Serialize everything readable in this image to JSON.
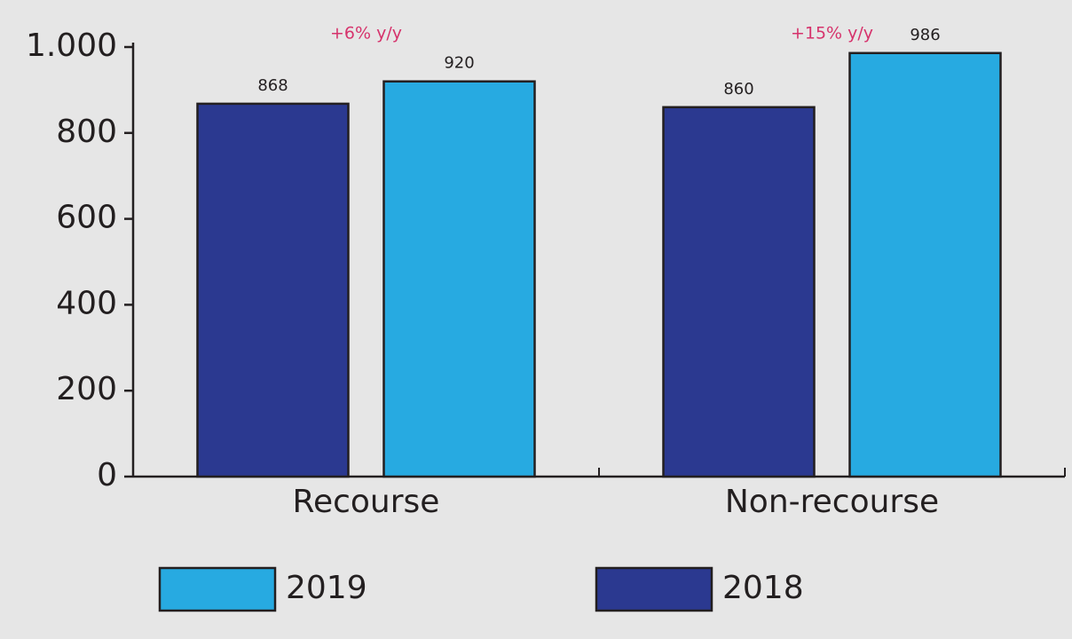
{
  "chart_data": {
    "type": "bar",
    "categories": [
      "Recourse",
      "Non-recourse"
    ],
    "series": [
      {
        "name": "2018",
        "color": "#2b3990",
        "values": [
          868,
          860
        ]
      },
      {
        "name": "2019",
        "color": "#27aae1",
        "values": [
          920,
          986
        ]
      }
    ],
    "annotations": [
      "+6% y/y",
      "+15% y/y"
    ],
    "annotation_color": "#d6336c",
    "ylim": [
      0,
      1000
    ],
    "yticks": [
      0,
      200,
      400,
      600,
      800,
      {
        "value": 1000,
        "label": "1.000"
      }
    ],
    "grid": false
  }
}
